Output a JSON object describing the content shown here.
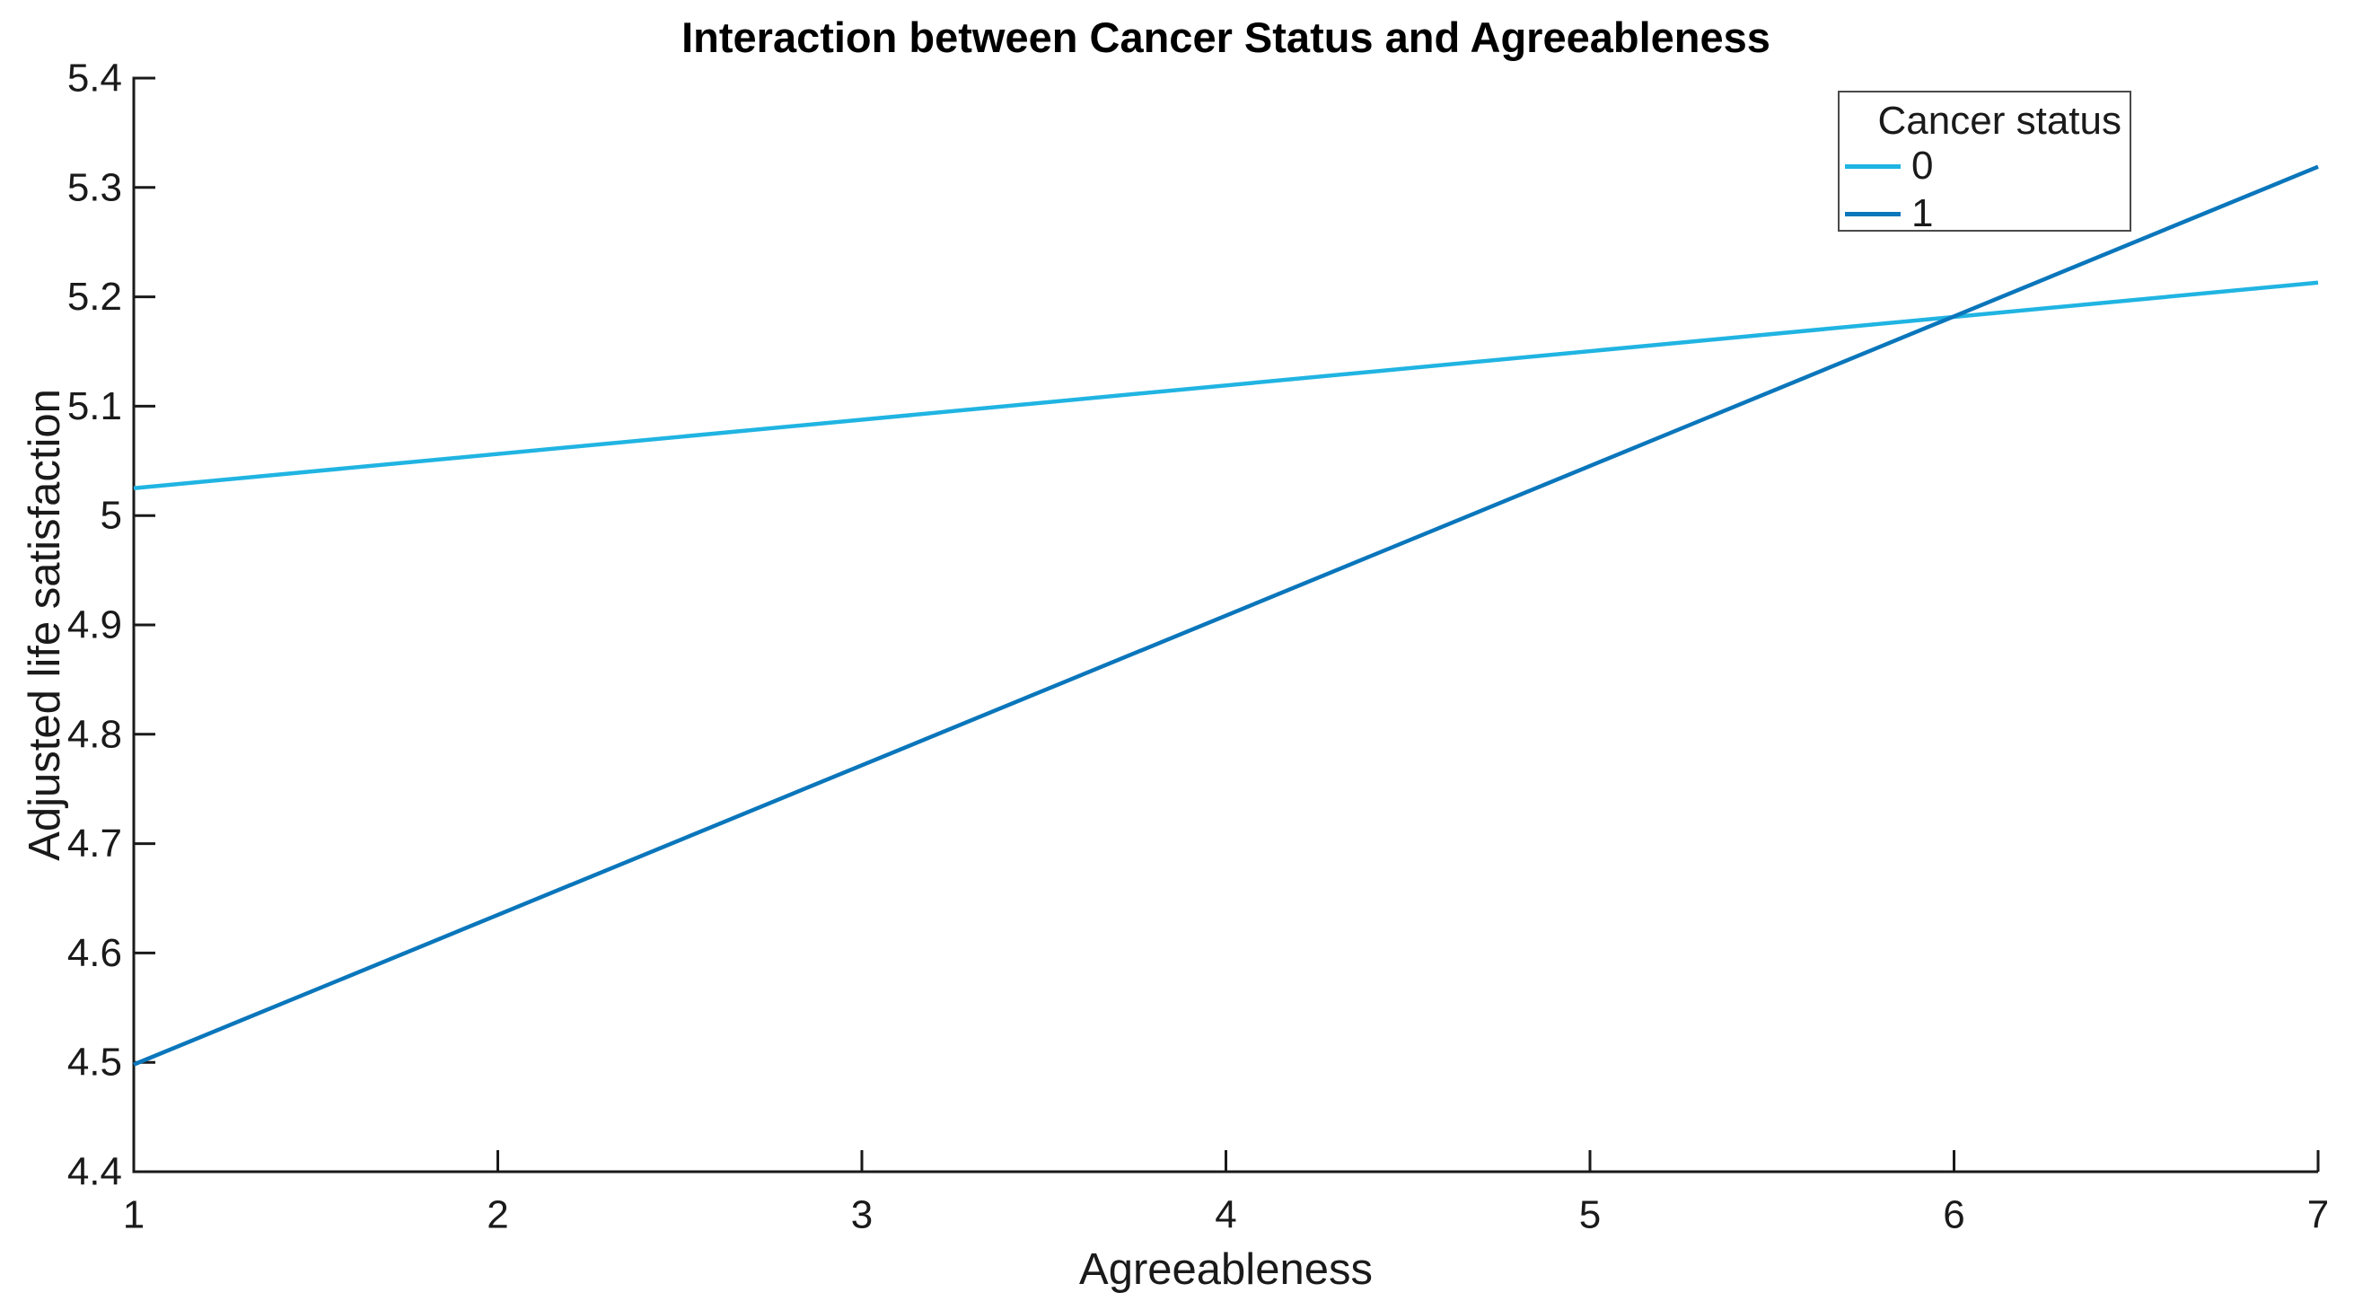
{
  "page": {
    "background": "#ffffff"
  },
  "chart_data": {
    "type": "line",
    "title": "Interaction between Cancer Status and Agreeableness",
    "xlabel": "Agreeableness",
    "ylabel": "Adjusted life satisfaction",
    "xlim": [
      1,
      7
    ],
    "ylim": [
      4.4,
      5.4
    ],
    "xticks": [
      1,
      2,
      3,
      4,
      5,
      6,
      7
    ],
    "yticks": [
      4.4,
      4.5,
      4.6,
      4.7,
      4.8,
      4.9,
      5.0,
      5.1,
      5.2,
      5.3,
      5.4
    ],
    "grid": false,
    "box": false,
    "tick_direction": "in",
    "axis_color": "#1a1a1a",
    "title_color": "#000000",
    "legend": {
      "title": "Cancer status",
      "position": "top-right"
    },
    "series": [
      {
        "name": "0",
        "color": "#20B4E2",
        "x": [
          1,
          7
        ],
        "y": [
          5.025,
          5.213
        ]
      },
      {
        "name": "1",
        "color": "#0A76BB",
        "x": [
          1,
          7
        ],
        "y": [
          4.498,
          5.319
        ]
      }
    ]
  }
}
